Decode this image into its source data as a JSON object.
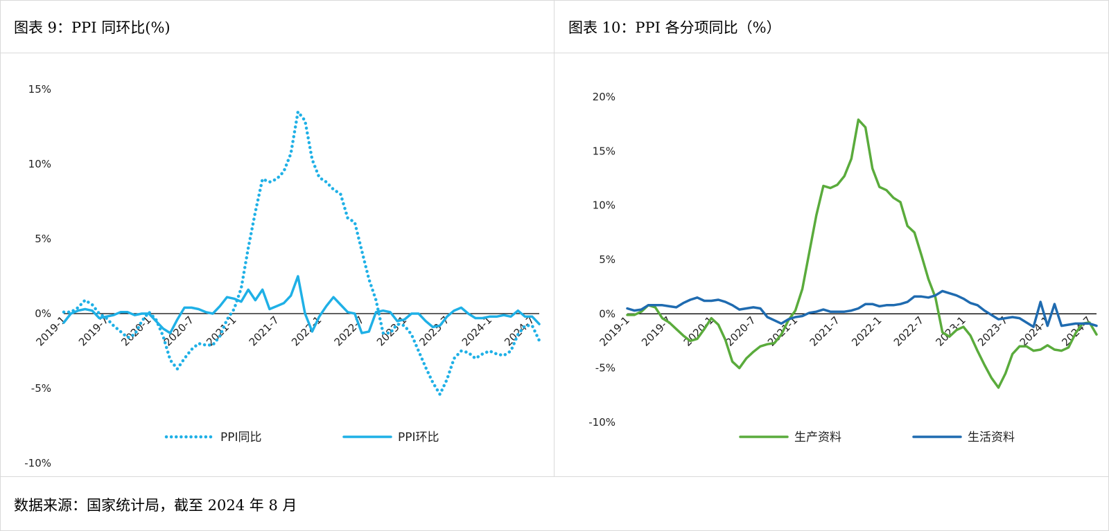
{
  "left_title": "图表 9：PPI 同环比(%)",
  "right_title": "图表 10：PPI 各分项同比（%）",
  "source": "数据来源：国家统计局，截至 2024 年 8 月",
  "chart_data": [
    {
      "type": "line",
      "title": "图表 9：PPI 同环比(%)",
      "x": [
        "2019-1",
        "2019-2",
        "2019-3",
        "2019-4",
        "2019-5",
        "2019-6",
        "2019-7",
        "2019-8",
        "2019-9",
        "2019-10",
        "2019-11",
        "2019-12",
        "2020-1",
        "2020-2",
        "2020-3",
        "2020-4",
        "2020-5",
        "2020-6",
        "2020-7",
        "2020-8",
        "2020-9",
        "2020-10",
        "2020-11",
        "2020-12",
        "2021-1",
        "2021-2",
        "2021-3",
        "2021-4",
        "2021-5",
        "2021-6",
        "2021-7",
        "2021-8",
        "2021-9",
        "2021-10",
        "2021-11",
        "2021-12",
        "2022-1",
        "2022-2",
        "2022-3",
        "2022-4",
        "2022-5",
        "2022-6",
        "2022-7",
        "2022-8",
        "2022-9",
        "2022-10",
        "2022-11",
        "2022-12",
        "2023-1",
        "2023-2",
        "2023-3",
        "2023-4",
        "2023-5",
        "2023-6",
        "2023-7",
        "2023-8",
        "2023-9",
        "2023-10",
        "2023-11",
        "2023-12",
        "2024-1",
        "2024-2",
        "2024-3",
        "2024-4",
        "2024-5",
        "2024-6",
        "2024-7",
        "2024-8"
      ],
      "x_ticks": [
        "2019-1",
        "2019-7",
        "2020-1",
        "2020-7",
        "2021-1",
        "2021-7",
        "2022-1",
        "2022-7",
        "2023-1",
        "2023-7",
        "2024-1",
        "2024-7"
      ],
      "y_ticks": [
        "15%",
        "10%",
        "5%",
        "0%",
        "-5%",
        "-10%"
      ],
      "ylim": [
        -10,
        15
      ],
      "series": [
        {
          "name": "PPI同比",
          "color": "#1fb0e6",
          "style": "dotted",
          "values": [
            0.1,
            0.1,
            0.4,
            0.9,
            0.6,
            0.0,
            -0.3,
            -0.8,
            -1.2,
            -1.6,
            -1.4,
            -0.5,
            0.1,
            -0.4,
            -1.5,
            -3.1,
            -3.7,
            -3.0,
            -2.4,
            -2.0,
            -2.1,
            -2.1,
            -1.5,
            -0.4,
            0.3,
            1.7,
            4.4,
            6.8,
            9.0,
            8.8,
            9.0,
            9.5,
            10.7,
            13.5,
            12.9,
            10.3,
            9.1,
            8.8,
            8.3,
            8.0,
            6.4,
            6.1,
            4.2,
            2.3,
            0.9,
            -1.3,
            -1.3,
            -0.7,
            -0.8,
            -1.4,
            -2.5,
            -3.6,
            -4.6,
            -5.4,
            -4.4,
            -3.0,
            -2.5,
            -2.6,
            -3.0,
            -2.7,
            -2.5,
            -2.7,
            -2.8,
            -2.5,
            -1.4,
            -0.8,
            -0.8,
            -1.8
          ]
        },
        {
          "name": "PPI环比",
          "color": "#1fb0e6",
          "style": "solid",
          "values": [
            -0.6,
            0.0,
            0.2,
            0.3,
            0.2,
            -0.3,
            -0.2,
            -0.1,
            0.1,
            0.1,
            -0.1,
            0.0,
            0.0,
            -0.5,
            -1.0,
            -1.3,
            -0.4,
            0.4,
            0.4,
            0.3,
            0.1,
            0.0,
            0.5,
            1.1,
            1.0,
            0.8,
            1.6,
            0.9,
            1.6,
            0.3,
            0.5,
            0.7,
            1.2,
            2.5,
            0.0,
            -1.2,
            -0.2,
            0.5,
            1.1,
            0.6,
            0.1,
            0.0,
            -1.3,
            -1.2,
            0.1,
            0.2,
            0.1,
            -0.5,
            -0.4,
            0.0,
            0.0,
            -0.5,
            -0.9,
            -0.8,
            -0.2,
            0.2,
            0.4,
            0.0,
            -0.3,
            -0.3,
            -0.2,
            -0.2,
            -0.1,
            -0.2,
            0.2,
            -0.2,
            -0.2,
            -0.7
          ]
        }
      ]
    },
    {
      "type": "line",
      "title": "图表 10：PPI 各分项同比（%）",
      "x": [
        "2019-1",
        "2019-2",
        "2019-3",
        "2019-4",
        "2019-5",
        "2019-6",
        "2019-7",
        "2019-8",
        "2019-9",
        "2019-10",
        "2019-11",
        "2019-12",
        "2020-1",
        "2020-2",
        "2020-3",
        "2020-4",
        "2020-5",
        "2020-6",
        "2020-7",
        "2020-8",
        "2020-9",
        "2020-10",
        "2020-11",
        "2020-12",
        "2021-1",
        "2021-2",
        "2021-3",
        "2021-4",
        "2021-5",
        "2021-6",
        "2021-7",
        "2021-8",
        "2021-9",
        "2021-10",
        "2021-11",
        "2021-12",
        "2022-1",
        "2022-2",
        "2022-3",
        "2022-4",
        "2022-5",
        "2022-6",
        "2022-7",
        "2022-8",
        "2022-9",
        "2022-10",
        "2022-11",
        "2022-12",
        "2023-1",
        "2023-2",
        "2023-3",
        "2023-4",
        "2023-5",
        "2023-6",
        "2023-7",
        "2023-8",
        "2023-9",
        "2023-10",
        "2023-11",
        "2023-12",
        "2024-1",
        "2024-2",
        "2024-3",
        "2024-4",
        "2024-5",
        "2024-6",
        "2024-7",
        "2024-8"
      ],
      "x_ticks": [
        "2019-1",
        "2019-7",
        "2020-1",
        "2020-7",
        "2021-1",
        "2021-7",
        "2022-1",
        "2022-7",
        "2023-1",
        "2023-7",
        "2024-1",
        "2024-7"
      ],
      "y_ticks": [
        "20%",
        "15%",
        "10%",
        "5%",
        "0%",
        "-5%",
        "-10%"
      ],
      "ylim": [
        -10,
        20
      ],
      "series": [
        {
          "name": "生产资料",
          "color": "#5aab3c",
          "style": "solid",
          "values": [
            -0.1,
            -0.1,
            0.2,
            0.8,
            0.6,
            -0.4,
            -0.8,
            -1.4,
            -2.0,
            -2.5,
            -2.3,
            -1.4,
            -0.4,
            -1.0,
            -2.4,
            -4.4,
            -5.0,
            -4.1,
            -3.5,
            -3.0,
            -2.8,
            -2.7,
            -1.9,
            -0.6,
            0.3,
            2.3,
            5.7,
            9.1,
            11.8,
            11.6,
            11.9,
            12.7,
            14.3,
            17.9,
            17.2,
            13.4,
            11.7,
            11.4,
            10.7,
            10.3,
            8.1,
            7.5,
            5.4,
            3.2,
            1.5,
            -1.7,
            -2.1,
            -1.5,
            -1.2,
            -2.0,
            -3.4,
            -4.7,
            -5.9,
            -6.8,
            -5.5,
            -3.7,
            -3.0,
            -3.0,
            -3.4,
            -3.3,
            -2.9,
            -3.3,
            -3.4,
            -3.1,
            -1.8,
            -0.9,
            -0.8,
            -1.9
          ]
        },
        {
          "name": "生活资料",
          "color": "#1f6bb0",
          "style": "solid",
          "values": [
            0.5,
            0.3,
            0.4,
            0.8,
            0.8,
            0.8,
            0.7,
            0.6,
            1.0,
            1.3,
            1.5,
            1.2,
            1.2,
            1.3,
            1.1,
            0.8,
            0.4,
            0.5,
            0.6,
            0.5,
            -0.3,
            -0.6,
            -0.9,
            -0.5,
            -0.3,
            -0.2,
            0.1,
            0.2,
            0.4,
            0.2,
            0.2,
            0.2,
            0.3,
            0.5,
            0.9,
            0.9,
            0.7,
            0.8,
            0.8,
            0.9,
            1.1,
            1.6,
            1.6,
            1.5,
            1.7,
            2.1,
            1.9,
            1.7,
            1.4,
            1.0,
            0.8,
            0.3,
            -0.1,
            -0.5,
            -0.4,
            -0.3,
            -0.4,
            -0.8,
            -1.2,
            1.1,
            -1.1,
            0.9,
            -1.1,
            -1.0,
            -0.9,
            -0.9,
            -0.9,
            -1.1
          ]
        }
      ]
    }
  ]
}
